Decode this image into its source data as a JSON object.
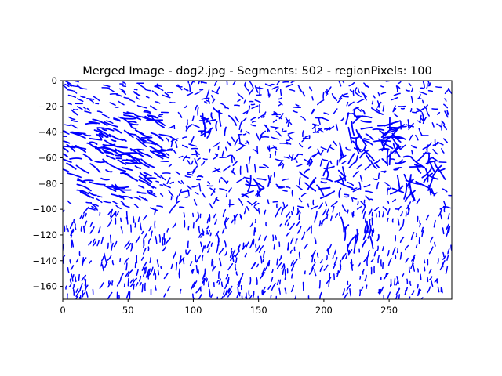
{
  "chart_data": {
    "type": "line",
    "title": "Merged Image - dog2.jpg - Segments: 502 - regionPixels: 100",
    "xlabel": "",
    "ylabel": "",
    "xlim": [
      0,
      298
    ],
    "ylim": [
      -170,
      0
    ],
    "x_ticks": [
      0,
      50,
      100,
      150,
      200,
      250
    ],
    "y_ticks": [
      0,
      -20,
      -40,
      -60,
      -80,
      -100,
      -120,
      -140,
      -160
    ],
    "x_tick_labels": [
      "0",
      "50",
      "100",
      "150",
      "200",
      "250"
    ],
    "y_tick_labels": [
      "0",
      "−20",
      "−40",
      "−60",
      "−80",
      "−100",
      "−120",
      "−140",
      "−160"
    ],
    "segment_count": 502,
    "series_color": "#0000ff",
    "grid": false,
    "legend": "none"
  }
}
